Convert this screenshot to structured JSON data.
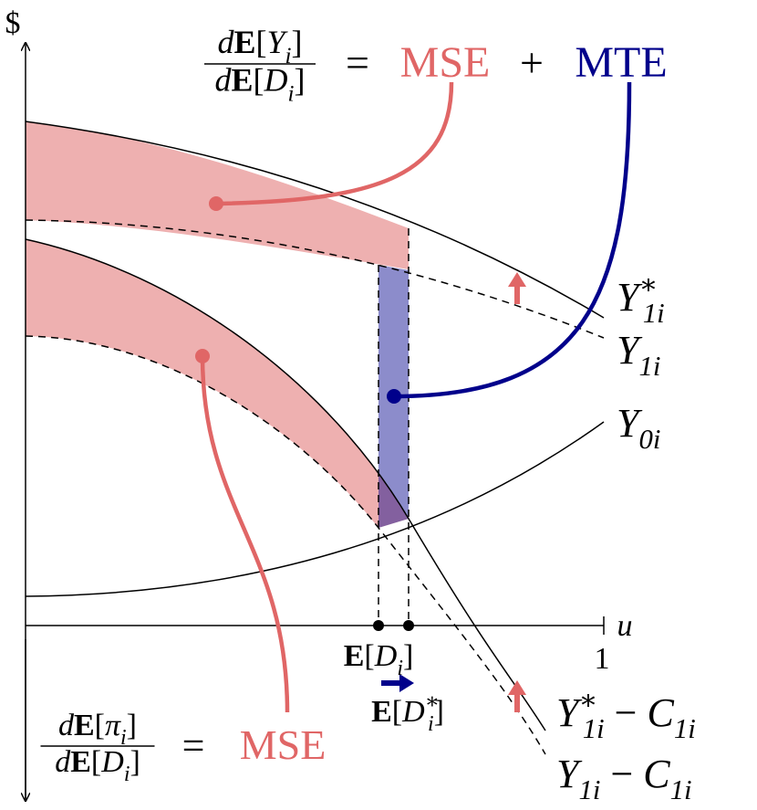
{
  "axes": {
    "y_label": "$",
    "x_label": "u",
    "x_max_label": "1"
  },
  "top_formula": {
    "numerator": [
      [
        "d",
        "it"
      ],
      [
        "E",
        "b"
      ],
      [
        "[",
        "rm"
      ],
      [
        "Y",
        "it"
      ],
      [
        "i",
        "sub"
      ],
      [
        "]",
        "rm"
      ]
    ],
    "denominator": [
      [
        "d",
        "it"
      ],
      [
        "E",
        "b"
      ],
      [
        "[",
        "rm"
      ],
      [
        "D",
        "it"
      ],
      [
        "i",
        "sub"
      ],
      [
        "]",
        "rm"
      ]
    ],
    "equals": "=",
    "mse": "MSE",
    "plus": "+",
    "mte": "MTE"
  },
  "bottom_formula": {
    "numerator": [
      [
        "d",
        "it"
      ],
      [
        "E",
        "b"
      ],
      [
        "[",
        "rm"
      ],
      [
        "π",
        "it"
      ],
      [
        "i",
        "sub"
      ],
      [
        "]",
        "rm"
      ]
    ],
    "denominator": [
      [
        "d",
        "it"
      ],
      [
        "E",
        "b"
      ],
      [
        "[",
        "rm"
      ],
      [
        "D",
        "it"
      ],
      [
        "i",
        "sub"
      ],
      [
        "]",
        "rm"
      ]
    ],
    "equals": "=",
    "mse": "MSE"
  },
  "curve_labels": {
    "y1_star": [
      [
        "Y",
        "it"
      ],
      [
        "∗",
        "sup"
      ],
      [
        "1i",
        "sub"
      ]
    ],
    "y1": [
      [
        "Y",
        "it"
      ],
      [
        "1i",
        "sub"
      ]
    ],
    "y0": [
      [
        "Y",
        "it"
      ],
      [
        "0i",
        "sub"
      ]
    ],
    "y1_star_minus_c": [
      [
        "Y",
        "it"
      ],
      [
        "∗",
        "sup"
      ],
      [
        "1i",
        "sub"
      ],
      [
        " − ",
        "rm"
      ],
      [
        "C",
        "it"
      ],
      [
        "1i",
        "sub"
      ]
    ],
    "y1_minus_c": [
      [
        "Y",
        "it"
      ],
      [
        "1i",
        "sub"
      ],
      [
        " − ",
        "rm"
      ],
      [
        "C",
        "it"
      ],
      [
        "1i",
        "sub"
      ]
    ]
  },
  "x_markers": {
    "e_d": [
      [
        "E",
        "b"
      ],
      [
        "[",
        "rm"
      ],
      [
        "D",
        "it"
      ],
      [
        "i",
        "sub"
      ],
      [
        "]",
        "rm"
      ]
    ],
    "e_d_star": [
      [
        "E",
        "b"
      ],
      [
        "[",
        "rm"
      ],
      [
        "D",
        "it"
      ],
      [
        "∗",
        "sup"
      ],
      [
        "i",
        "sub"
      ],
      [
        "]",
        "rm"
      ]
    ]
  }
}
